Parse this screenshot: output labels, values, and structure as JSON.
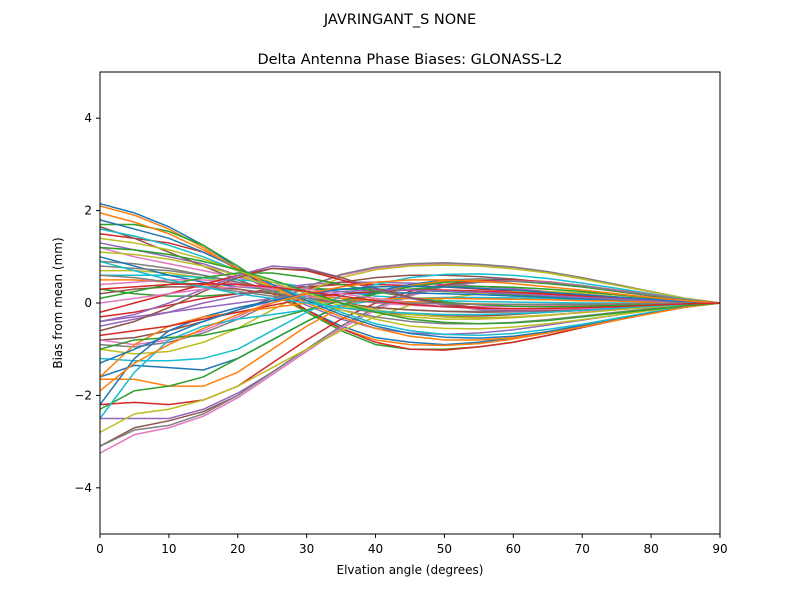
{
  "chart_data": {
    "type": "line",
    "suptitle": "JAVRINGANT_S    NONE",
    "title": "Delta Antenna Phase Biases: GLONASS-L2",
    "xlabel": "Elvation angle (degrees)",
    "ylabel": "Bias from mean (mm)",
    "xlim": [
      0,
      90
    ],
    "ylim": [
      -5,
      5
    ],
    "xticks": [
      0,
      10,
      20,
      30,
      40,
      50,
      60,
      70,
      80,
      90
    ],
    "yticks": [
      -4,
      -2,
      0,
      2,
      4
    ],
    "ytick_labels": [
      "−4",
      "−2",
      "0",
      "2",
      "4"
    ],
    "grid": false,
    "legend": "none",
    "x": [
      0,
      5,
      10,
      15,
      20,
      25,
      30,
      35,
      40,
      45,
      50,
      55,
      60,
      65,
      70,
      75,
      80,
      85,
      90
    ],
    "colors": [
      "#1f77b4",
      "#ff7f0e",
      "#2ca02c",
      "#d62728",
      "#9467bd",
      "#8c564b",
      "#e377c2",
      "#7f7f7f",
      "#bcbd22",
      "#17becf"
    ],
    "series": [
      {
        "values": [
          2.15,
          1.95,
          1.65,
          1.25,
          0.75,
          0.25,
          -0.15,
          -0.5,
          -0.75,
          -0.85,
          -0.9,
          -0.85,
          -0.75,
          -0.62,
          -0.48,
          -0.33,
          -0.2,
          -0.08,
          0
        ]
      },
      {
        "values": [
          2.1,
          1.9,
          1.6,
          1.2,
          0.7,
          0.2,
          -0.2,
          -0.55,
          -0.8,
          -0.9,
          -0.92,
          -0.88,
          -0.78,
          -0.65,
          -0.5,
          -0.35,
          -0.2,
          -0.08,
          0
        ]
      },
      {
        "values": [
          1.7,
          1.7,
          1.55,
          1.25,
          0.8,
          0.3,
          -0.2,
          -0.6,
          -0.9,
          -1.0,
          -1.0,
          -0.95,
          -0.85,
          -0.7,
          -0.53,
          -0.37,
          -0.22,
          -0.09,
          0
        ]
      },
      {
        "values": [
          1.5,
          1.4,
          1.3,
          1.1,
          0.75,
          0.3,
          -0.15,
          -0.55,
          -0.85,
          -1.0,
          -1.02,
          -0.95,
          -0.85,
          -0.7,
          -0.53,
          -0.37,
          -0.22,
          -0.09,
          0
        ]
      },
      {
        "values": [
          1.3,
          1.15,
          1.0,
          0.85,
          0.6,
          0.3,
          -0.05,
          -0.35,
          -0.55,
          -0.65,
          -0.68,
          -0.65,
          -0.58,
          -0.48,
          -0.37,
          -0.26,
          -0.15,
          -0.06,
          0
        ]
      },
      {
        "values": [
          1.65,
          1.4,
          1.1,
          0.8,
          0.5,
          0.25,
          0.05,
          -0.1,
          -0.2,
          -0.25,
          -0.28,
          -0.28,
          -0.25,
          -0.2,
          -0.16,
          -0.11,
          -0.07,
          -0.03,
          0
        ]
      },
      {
        "values": [
          1.2,
          1.0,
          0.85,
          0.7,
          0.55,
          0.4,
          0.25,
          0.1,
          0.0,
          -0.05,
          -0.08,
          -0.08,
          -0.07,
          -0.06,
          -0.04,
          -0.03,
          -0.02,
          -0.01,
          0
        ]
      },
      {
        "values": [
          0.9,
          0.85,
          0.75,
          0.6,
          0.45,
          0.3,
          0.15,
          0.0,
          -0.1,
          -0.15,
          -0.18,
          -0.18,
          -0.16,
          -0.13,
          -0.1,
          -0.07,
          -0.04,
          -0.02,
          0
        ]
      },
      {
        "values": [
          0.7,
          0.7,
          0.65,
          0.55,
          0.4,
          0.25,
          0.1,
          -0.05,
          -0.2,
          -0.3,
          -0.35,
          -0.35,
          -0.32,
          -0.27,
          -0.2,
          -0.14,
          -0.09,
          -0.04,
          0
        ]
      },
      {
        "values": [
          0.6,
          0.6,
          0.6,
          0.55,
          0.5,
          0.45,
          0.35,
          0.25,
          0.15,
          0.1,
          0.05,
          0.03,
          0.02,
          0.01,
          0.0,
          0.0,
          0.0,
          0.0,
          0
        ]
      },
      {
        "values": [
          1.0,
          0.8,
          0.6,
          0.45,
          0.35,
          0.3,
          0.3,
          0.3,
          0.3,
          0.28,
          0.25,
          0.22,
          0.18,
          0.15,
          0.11,
          0.08,
          0.05,
          0.02,
          0
        ]
      },
      {
        "values": [
          0.5,
          0.5,
          0.45,
          0.4,
          0.3,
          0.2,
          0.15,
          0.1,
          0.05,
          0.03,
          0.0,
          -0.02,
          -0.03,
          -0.03,
          -0.03,
          -0.02,
          -0.01,
          0.0,
          0
        ]
      },
      {
        "values": [
          0.3,
          0.2,
          0.15,
          0.15,
          0.2,
          0.25,
          0.3,
          0.3,
          0.3,
          0.28,
          0.25,
          0.22,
          0.18,
          0.14,
          0.1,
          0.07,
          0.04,
          0.02,
          0
        ]
      },
      {
        "values": [
          -0.3,
          -0.2,
          -0.05,
          0.1,
          0.2,
          0.3,
          0.35,
          0.4,
          0.4,
          0.38,
          0.35,
          0.3,
          0.26,
          0.21,
          0.16,
          0.11,
          0.07,
          0.03,
          0
        ]
      },
      {
        "values": [
          -0.5,
          -0.35,
          -0.2,
          0.0,
          0.15,
          0.3,
          0.4,
          0.45,
          0.45,
          0.43,
          0.4,
          0.36,
          0.31,
          0.25,
          0.19,
          0.13,
          0.08,
          0.03,
          0
        ]
      },
      {
        "values": [
          -0.8,
          -0.75,
          -0.6,
          -0.4,
          -0.15,
          0.1,
          0.3,
          0.45,
          0.55,
          0.6,
          0.6,
          0.57,
          0.52,
          0.44,
          0.35,
          0.25,
          0.15,
          0.06,
          0
        ]
      },
      {
        "values": [
          -0.8,
          -0.9,
          -0.8,
          -0.6,
          -0.3,
          0.05,
          0.35,
          0.6,
          0.75,
          0.82,
          0.85,
          0.83,
          0.77,
          0.67,
          0.54,
          0.39,
          0.24,
          0.1,
          0
        ]
      },
      {
        "values": [
          -0.9,
          -0.95,
          -0.85,
          -0.65,
          -0.35,
          0.0,
          0.35,
          0.62,
          0.78,
          0.85,
          0.87,
          0.84,
          0.78,
          0.68,
          0.55,
          0.4,
          0.25,
          0.1,
          0
        ]
      },
      {
        "values": [
          -1.0,
          -1.1,
          -1.05,
          -0.85,
          -0.55,
          -0.15,
          0.25,
          0.55,
          0.72,
          0.8,
          0.82,
          0.8,
          0.74,
          0.65,
          0.52,
          0.38,
          0.24,
          0.1,
          0
        ]
      },
      {
        "values": [
          -1.2,
          -1.25,
          -1.25,
          -1.2,
          -1.0,
          -0.6,
          -0.2,
          0.15,
          0.4,
          0.55,
          0.62,
          0.63,
          0.6,
          0.53,
          0.43,
          0.32,
          0.2,
          0.08,
          0
        ]
      },
      {
        "values": [
          -1.6,
          -1.35,
          -1.4,
          -1.45,
          -1.2,
          -0.8,
          -0.4,
          -0.05,
          0.25,
          0.4,
          0.5,
          0.52,
          0.5,
          0.44,
          0.36,
          0.27,
          0.17,
          0.07,
          0
        ]
      },
      {
        "values": [
          -1.65,
          -1.65,
          -1.8,
          -1.8,
          -1.5,
          -1.0,
          -0.5,
          -0.1,
          0.2,
          0.38,
          0.48,
          0.5,
          0.48,
          0.42,
          0.35,
          0.26,
          0.16,
          0.07,
          0
        ]
      },
      {
        "values": [
          -2.3,
          -1.9,
          -1.8,
          -1.6,
          -1.2,
          -0.8,
          -0.4,
          -0.05,
          0.2,
          0.35,
          0.45,
          0.48,
          0.47,
          0.42,
          0.35,
          0.26,
          0.16,
          0.07,
          0
        ]
      },
      {
        "values": [
          -2.2,
          -2.15,
          -2.2,
          -2.1,
          -1.8,
          -1.3,
          -0.8,
          -0.35,
          0.0,
          0.25,
          0.4,
          0.48,
          0.5,
          0.46,
          0.38,
          0.28,
          0.18,
          0.07,
          0
        ]
      },
      {
        "values": [
          -2.5,
          -2.5,
          -2.5,
          -2.3,
          -1.95,
          -1.5,
          -1.0,
          -0.5,
          -0.1,
          0.2,
          0.38,
          0.46,
          0.48,
          0.45,
          0.38,
          0.28,
          0.18,
          0.07,
          0
        ]
      },
      {
        "values": [
          -3.1,
          -2.7,
          -2.55,
          -2.35,
          -2.0,
          -1.5,
          -1.0,
          -0.5,
          -0.1,
          0.2,
          0.38,
          0.46,
          0.48,
          0.45,
          0.38,
          0.28,
          0.18,
          0.07,
          0
        ]
      },
      {
        "values": [
          -3.25,
          -2.85,
          -2.7,
          -2.45,
          -2.05,
          -1.55,
          -1.05,
          -0.55,
          -0.15,
          0.15,
          0.35,
          0.45,
          0.48,
          0.45,
          0.38,
          0.28,
          0.18,
          0.07,
          0
        ]
      },
      {
        "values": [
          -3.1,
          -2.75,
          -2.65,
          -2.4,
          -2.0,
          -1.5,
          -1.0,
          -0.5,
          -0.1,
          0.18,
          0.36,
          0.45,
          0.47,
          0.44,
          0.37,
          0.27,
          0.17,
          0.07,
          0
        ]
      },
      {
        "values": [
          -2.8,
          -2.4,
          -2.3,
          -2.1,
          -1.8,
          -1.4,
          -1.0,
          -0.6,
          -0.3,
          -0.05,
          0.1,
          0.2,
          0.25,
          0.25,
          0.22,
          0.17,
          0.11,
          0.05,
          0
        ]
      },
      {
        "values": [
          -2.5,
          -1.5,
          -0.8,
          -0.5,
          -0.35,
          -0.25,
          -0.15,
          -0.05,
          0.05,
          0.1,
          0.12,
          0.12,
          0.11,
          0.09,
          0.07,
          0.05,
          0.03,
          0.01,
          0
        ]
      },
      {
        "values": [
          -2.2,
          -1.2,
          -0.6,
          -0.3,
          -0.1,
          0.05,
          0.15,
          0.2,
          0.22,
          0.22,
          0.2,
          0.18,
          0.15,
          0.12,
          0.09,
          0.06,
          0.04,
          0.02,
          0
        ]
      },
      {
        "values": [
          -1.6,
          -0.9,
          -0.5,
          -0.3,
          -0.2,
          -0.1,
          0.0,
          0.05,
          0.08,
          0.1,
          0.1,
          0.09,
          0.08,
          0.07,
          0.05,
          0.04,
          0.02,
          0.01,
          0
        ]
      },
      {
        "values": [
          -1.0,
          -0.8,
          -0.75,
          -0.7,
          -0.55,
          -0.35,
          -0.15,
          0.05,
          0.2,
          0.3,
          0.35,
          0.36,
          0.34,
          0.3,
          0.25,
          0.18,
          0.11,
          0.05,
          0
        ]
      },
      {
        "values": [
          -0.7,
          -0.6,
          -0.5,
          -0.35,
          -0.2,
          -0.05,
          0.1,
          0.2,
          0.25,
          0.28,
          0.28,
          0.26,
          0.23,
          0.19,
          0.15,
          0.11,
          0.07,
          0.03,
          0
        ]
      },
      {
        "values": [
          -0.4,
          -0.3,
          -0.2,
          -0.1,
          0.0,
          0.1,
          0.2,
          0.25,
          0.28,
          0.28,
          0.26,
          0.23,
          0.2,
          0.16,
          0.12,
          0.09,
          0.05,
          0.02,
          0
        ]
      },
      {
        "values": [
          0.2,
          0.3,
          0.35,
          0.35,
          0.3,
          0.2,
          0.1,
          0.0,
          -0.1,
          -0.15,
          -0.18,
          -0.2,
          -0.19,
          -0.17,
          -0.13,
          -0.1,
          -0.06,
          -0.03,
          0
        ]
      },
      {
        "values": [
          0.4,
          0.45,
          0.5,
          0.5,
          0.42,
          0.3,
          0.15,
          0.0,
          -0.15,
          -0.25,
          -0.3,
          -0.32,
          -0.3,
          -0.26,
          -0.2,
          -0.14,
          -0.09,
          -0.04,
          0
        ]
      },
      {
        "values": [
          0.8,
          0.75,
          0.7,
          0.6,
          0.45,
          0.25,
          0.05,
          -0.15,
          -0.3,
          -0.4,
          -0.45,
          -0.45,
          -0.42,
          -0.36,
          -0.28,
          -0.2,
          -0.12,
          -0.05,
          0
        ]
      },
      {
        "values": [
          1.1,
          1.05,
          0.95,
          0.8,
          0.6,
          0.35,
          0.1,
          -0.15,
          -0.35,
          -0.5,
          -0.55,
          -0.56,
          -0.52,
          -0.45,
          -0.36,
          -0.26,
          -0.16,
          -0.07,
          0
        ]
      },
      {
        "values": [
          1.6,
          1.45,
          1.25,
          1.0,
          0.7,
          0.4,
          0.1,
          -0.2,
          -0.45,
          -0.6,
          -0.68,
          -0.7,
          -0.66,
          -0.57,
          -0.46,
          -0.33,
          -0.2,
          -0.08,
          0
        ]
      },
      {
        "values": [
          1.8,
          1.6,
          1.4,
          1.1,
          0.75,
          0.4,
          0.05,
          -0.25,
          -0.5,
          -0.66,
          -0.74,
          -0.76,
          -0.72,
          -0.62,
          -0.5,
          -0.36,
          -0.22,
          -0.09,
          0
        ]
      },
      {
        "values": [
          1.95,
          1.75,
          1.5,
          1.15,
          0.75,
          0.35,
          0.0,
          -0.3,
          -0.55,
          -0.72,
          -0.8,
          -0.8,
          -0.75,
          -0.65,
          -0.52,
          -0.37,
          -0.23,
          -0.09,
          0
        ]
      },
      {
        "values": [
          0.1,
          0.25,
          0.4,
          0.55,
          0.65,
          0.65,
          0.55,
          0.4,
          0.25,
          0.12,
          0.02,
          -0.04,
          -0.07,
          -0.08,
          -0.07,
          -0.05,
          -0.03,
          -0.01,
          0
        ]
      },
      {
        "values": [
          -0.2,
          0.0,
          0.2,
          0.4,
          0.6,
          0.75,
          0.7,
          0.5,
          0.3,
          0.12,
          -0.02,
          -0.1,
          -0.14,
          -0.15,
          -0.13,
          -0.1,
          -0.06,
          -0.03,
          0
        ]
      },
      {
        "values": [
          -0.4,
          -0.25,
          0.0,
          0.3,
          0.6,
          0.8,
          0.75,
          0.55,
          0.3,
          0.1,
          -0.05,
          -0.14,
          -0.18,
          -0.18,
          -0.16,
          -0.12,
          -0.07,
          -0.03,
          0
        ]
      },
      {
        "values": [
          -0.6,
          -0.4,
          -0.1,
          0.25,
          0.55,
          0.75,
          0.72,
          0.55,
          0.32,
          0.12,
          -0.03,
          -0.12,
          -0.16,
          -0.17,
          -0.15,
          -0.11,
          -0.07,
          -0.03,
          0
        ]
      },
      {
        "values": [
          0.0,
          0.1,
          0.2,
          0.3,
          0.35,
          0.35,
          0.3,
          0.2,
          0.1,
          0.0,
          -0.08,
          -0.12,
          -0.14,
          -0.14,
          -0.12,
          -0.09,
          -0.06,
          -0.02,
          0
        ]
      },
      {
        "values": [
          0.6,
          0.55,
          0.45,
          0.35,
          0.25,
          0.15,
          0.1,
          0.05,
          0.02,
          0.0,
          -0.02,
          -0.03,
          -0.03,
          -0.03,
          -0.03,
          -0.02,
          -0.01,
          0.0,
          0
        ]
      },
      {
        "values": [
          1.4,
          1.3,
          1.15,
          0.95,
          0.7,
          0.45,
          0.2,
          0.0,
          -0.15,
          -0.25,
          -0.3,
          -0.32,
          -0.3,
          -0.26,
          -0.21,
          -0.15,
          -0.09,
          -0.04,
          0
        ]
      },
      {
        "values": [
          0.9,
          0.7,
          0.5,
          0.35,
          0.2,
          0.1,
          0.0,
          -0.1,
          -0.18,
          -0.22,
          -0.25,
          -0.25,
          -0.23,
          -0.2,
          -0.16,
          -0.11,
          -0.07,
          -0.03,
          0
        ]
      },
      {
        "values": [
          -1.3,
          -1.0,
          -0.7,
          -0.4,
          -0.15,
          0.05,
          0.2,
          0.3,
          0.35,
          0.36,
          0.35,
          0.32,
          0.28,
          0.23,
          0.18,
          0.13,
          0.08,
          0.03,
          0
        ]
      },
      {
        "values": [
          -1.9,
          -1.3,
          -0.9,
          -0.55,
          -0.25,
          0.0,
          0.2,
          0.35,
          0.45,
          0.5,
          0.5,
          0.47,
          0.42,
          0.35,
          0.28,
          0.2,
          0.12,
          0.05,
          0
        ]
      },
      {
        "values": [
          1.2,
          1.15,
          1.05,
          0.9,
          0.72,
          0.5,
          0.25,
          0.0,
          -0.2,
          -0.35,
          -0.42,
          -0.45,
          -0.43,
          -0.38,
          -0.3,
          -0.22,
          -0.14,
          -0.06,
          0
        ]
      },
      {
        "values": [
          0.3,
          0.35,
          0.4,
          0.42,
          0.4,
          0.35,
          0.25,
          0.15,
          0.05,
          -0.03,
          -0.08,
          -0.11,
          -0.12,
          -0.12,
          -0.1,
          -0.08,
          -0.05,
          -0.02,
          0
        ]
      }
    ]
  }
}
